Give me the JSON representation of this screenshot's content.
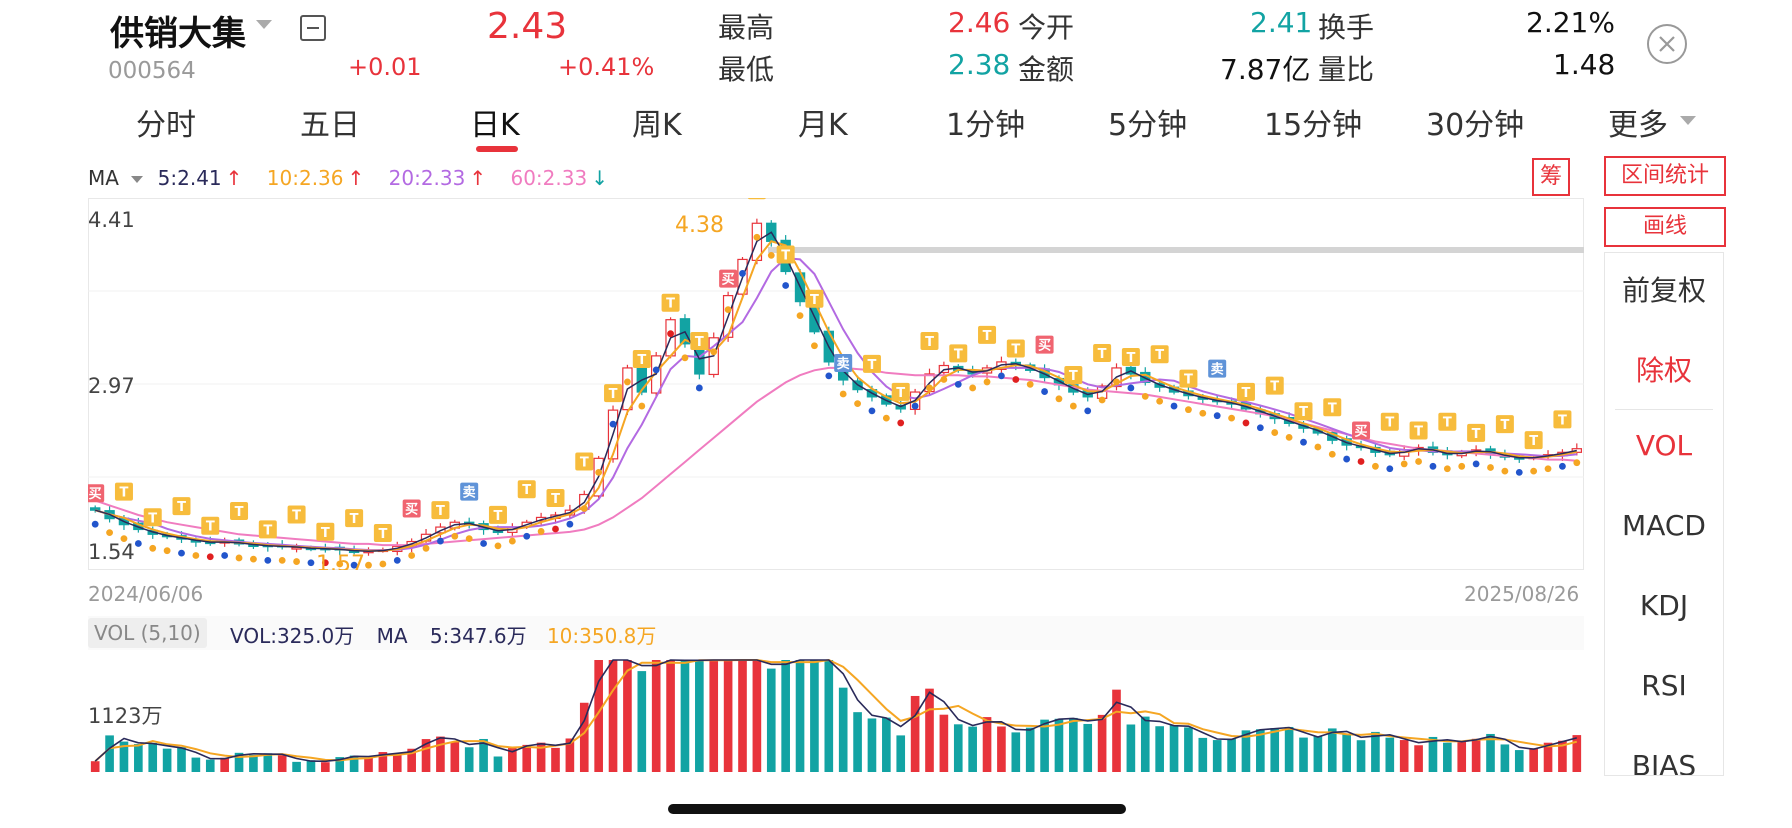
{
  "header": {
    "name": "供销大集",
    "code": "000564",
    "price": "2.43",
    "change": "+0.01",
    "change_pct": "+0.41%",
    "stats": [
      {
        "label": "最高",
        "value": "2.46"
      },
      {
        "label": "最低",
        "value": "2.38"
      },
      {
        "label": "今开",
        "value": "2.41"
      },
      {
        "label": "金额",
        "value": "7.87亿"
      },
      {
        "label": "换手",
        "value": "2.21%"
      },
      {
        "label": "量比",
        "value": "1.48"
      }
    ]
  },
  "tabs": [
    "分时",
    "五日",
    "日K",
    "周K",
    "月K",
    "1分钟",
    "5分钟",
    "15分钟",
    "30分钟",
    "更多"
  ],
  "active_tab": "日K",
  "ma_legend": {
    "label": "MA",
    "ma5": "5:2.41",
    "ma10": "10:2.36",
    "ma20": "20:2.33",
    "ma60": "60:2.33"
  },
  "price_axis": {
    "high": "4.41",
    "mid": "2.97",
    "low": "1.54"
  },
  "chart_annotations": {
    "peak": "4.38",
    "trough": "1.57"
  },
  "date_range": {
    "start": "2024/06/06",
    "end": "2025/08/26"
  },
  "volume_legend": {
    "label": "VOL (5,10)",
    "vol": "VOL:325.0万",
    "ma": "MA",
    "ma5": "5:347.6万",
    "ma10": "10:350.8万"
  },
  "volume_axis": {
    "max": "1123万"
  },
  "side_panel": {
    "chip": "筹",
    "range_stats": "区间统计",
    "draw": "画线",
    "items": [
      "前复权",
      "除权",
      "VOL",
      "MACD",
      "KDJ",
      "RSI",
      "BIAS"
    ]
  },
  "marker_labels": {
    "buy": "买",
    "sell": "卖",
    "t": "T"
  },
  "colors": {
    "up": "#e8333b",
    "down": "#12a3a3",
    "ma5": "#2a2a5a",
    "ma10": "#f5a623",
    "ma20": "#b36ae2",
    "ma60": "#f07cc0"
  },
  "chart_data": {
    "type": "candlestick",
    "x_range": [
      "2024/06/06",
      "2025/08/26"
    ],
    "ylim": [
      1.54,
      4.41
    ],
    "close": [
      1.92,
      1.85,
      1.8,
      1.76,
      1.72,
      1.7,
      1.68,
      1.66,
      1.65,
      1.66,
      1.64,
      1.63,
      1.62,
      1.62,
      1.61,
      1.6,
      1.6,
      1.59,
      1.58,
      1.58,
      1.59,
      1.62,
      1.66,
      1.72,
      1.78,
      1.82,
      1.8,
      1.76,
      1.74,
      1.78,
      1.82,
      1.86,
      1.88,
      1.92,
      2.05,
      2.35,
      2.75,
      3.1,
      2.9,
      3.2,
      3.5,
      3.3,
      3.05,
      3.35,
      3.7,
      4.0,
      4.3,
      4.15,
      3.9,
      3.65,
      3.4,
      3.15,
      3.0,
      2.92,
      2.86,
      2.8,
      2.76,
      2.9,
      3.05,
      3.12,
      3.08,
      3.05,
      3.1,
      3.15,
      3.12,
      3.08,
      3.02,
      2.96,
      2.9,
      2.86,
      2.95,
      3.1,
      3.05,
      2.98,
      2.94,
      2.9,
      2.87,
      2.84,
      2.82,
      2.8,
      2.76,
      2.72,
      2.68,
      2.64,
      2.6,
      2.56,
      2.5,
      2.46,
      2.44,
      2.4,
      2.38,
      2.42,
      2.44,
      2.4,
      2.38,
      2.4,
      2.42,
      2.39,
      2.36,
      2.35,
      2.36,
      2.38,
      2.4,
      2.43
    ],
    "ma60": [
      2.0,
      1.96,
      1.92,
      1.88,
      1.85,
      1.82,
      1.8,
      1.78,
      1.76,
      1.74,
      1.72,
      1.71,
      1.7,
      1.69,
      1.68,
      1.67,
      1.66,
      1.65,
      1.64,
      1.64,
      1.63,
      1.63,
      1.63,
      1.64,
      1.65,
      1.66,
      1.67,
      1.68,
      1.69,
      1.7,
      1.71,
      1.72,
      1.73,
      1.74,
      1.76,
      1.8,
      1.86,
      1.94,
      2.02,
      2.12,
      2.22,
      2.32,
      2.42,
      2.52,
      2.62,
      2.72,
      2.82,
      2.9,
      2.98,
      3.04,
      3.08,
      3.1,
      3.1,
      3.09,
      3.08,
      3.06,
      3.05,
      3.04,
      3.04,
      3.04,
      3.04,
      3.03,
      3.03,
      3.02,
      3.01,
      3.0,
      2.98,
      2.96,
      2.94,
      2.92,
      2.91,
      2.9,
      2.89,
      2.88,
      2.86,
      2.84,
      2.82,
      2.8,
      2.78,
      2.76,
      2.74,
      2.72,
      2.7,
      2.67,
      2.64,
      2.61,
      2.58,
      2.55,
      2.52,
      2.49,
      2.47,
      2.45,
      2.43,
      2.42,
      2.41,
      2.4,
      2.39,
      2.38,
      2.37,
      2.36,
      2.35,
      2.34,
      2.34,
      2.33
    ],
    "volume_max": "1123万"
  }
}
